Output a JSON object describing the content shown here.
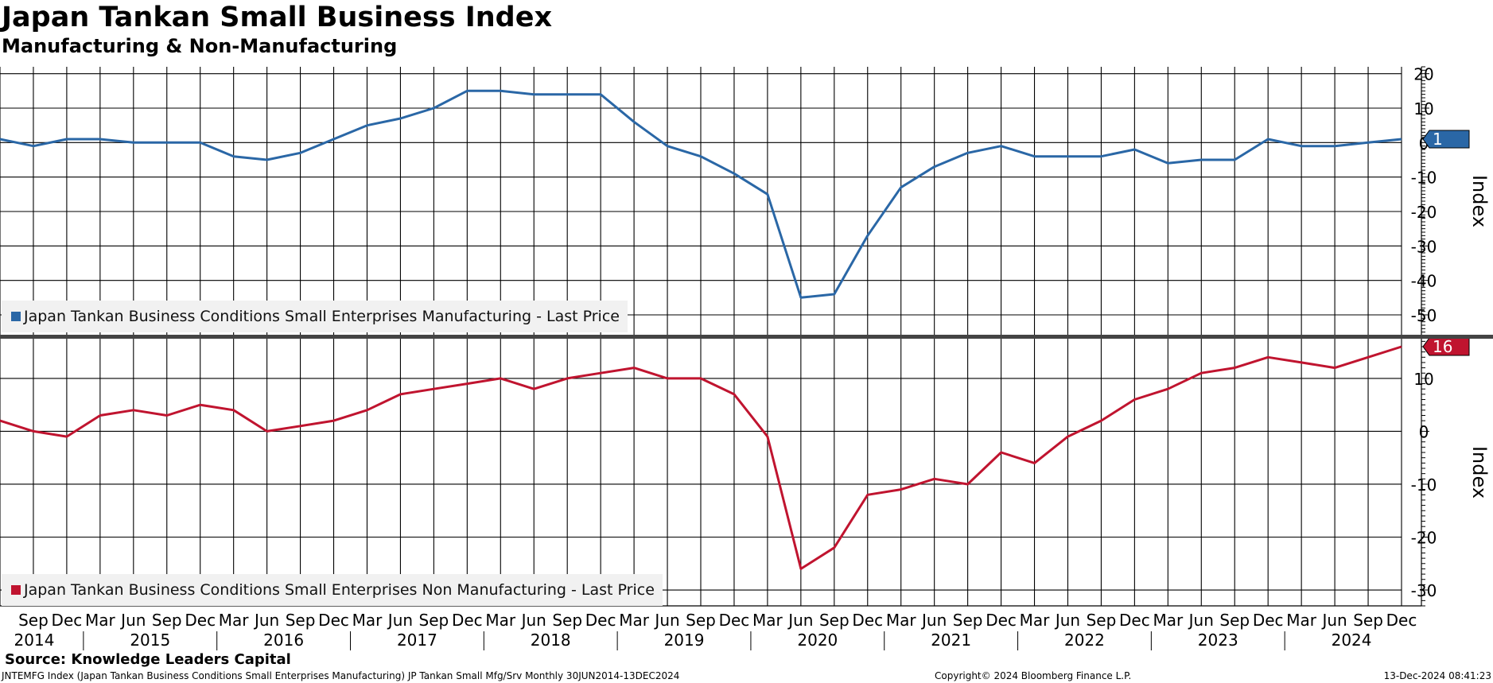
{
  "header": {
    "title": "Japan Tankan Small Business Index",
    "subtitle": "Manufacturing & Non-Manufacturing"
  },
  "footer": {
    "source": "Source: Knowledge Leaders Capital",
    "left": "JNTEMFG Index (Japan Tankan Business Conditions Small Enterprises Manufacturing) JP Tankan Small Mfg/Srv  Monthly 30JUN2014-13DEC2024",
    "middle": "Copyright© 2024 Bloomberg Finance L.P.",
    "right": "13-Dec-2024 08:41:23"
  },
  "chart_data": [
    {
      "type": "line",
      "ylabel": "Index",
      "ylim": [
        -56,
        22
      ],
      "yticks": [
        20,
        10,
        0,
        -10,
        -20,
        -30,
        -40,
        -50
      ],
      "grid": true,
      "legend_position": "bottom-left",
      "last_value_label": "1",
      "x": [
        "Jun 2014",
        "Sep 2014",
        "Dec 2014",
        "Mar 2015",
        "Jun 2015",
        "Sep 2015",
        "Dec 2015",
        "Mar 2016",
        "Jun 2016",
        "Sep 2016",
        "Dec 2016",
        "Mar 2017",
        "Jun 2017",
        "Sep 2017",
        "Dec 2017",
        "Mar 2018",
        "Jun 2018",
        "Sep 2018",
        "Dec 2018",
        "Mar 2019",
        "Jun 2019",
        "Sep 2019",
        "Dec 2019",
        "Mar 2020",
        "Jun 2020",
        "Sep 2020",
        "Dec 2020",
        "Mar 2021",
        "Jun 2021",
        "Sep 2021",
        "Dec 2021",
        "Mar 2022",
        "Jun 2022",
        "Sep 2022",
        "Dec 2022",
        "Mar 2023",
        "Jun 2023",
        "Sep 2023",
        "Dec 2023",
        "Mar 2024",
        "Jun 2024",
        "Sep 2024",
        "Dec 2024"
      ],
      "series": [
        {
          "name": "Japan Tankan Business Conditions Small Enterprises Manufacturing - Last Price",
          "color": "#2a67a6",
          "values": [
            1,
            -1,
            1,
            1,
            0,
            0,
            0,
            -4,
            -5,
            -3,
            1,
            5,
            7,
            10,
            15,
            15,
            14,
            14,
            14,
            6,
            -1,
            -4,
            -9,
            -15,
            -45,
            -44,
            -27,
            -13,
            -7,
            -3,
            -1,
            -4,
            -4,
            -4,
            -2,
            -6,
            -5,
            -5,
            1,
            -1,
            -1,
            0,
            1
          ]
        }
      ]
    },
    {
      "type": "line",
      "ylabel": "Index",
      "ylim": [
        -33,
        17.5
      ],
      "yticks": [
        10,
        0,
        -10,
        -20,
        -30
      ],
      "grid": true,
      "legend_position": "bottom-left",
      "last_value_label": "16",
      "x": [
        "Jun 2014",
        "Sep 2014",
        "Dec 2014",
        "Mar 2015",
        "Jun 2015",
        "Sep 2015",
        "Dec 2015",
        "Mar 2016",
        "Jun 2016",
        "Sep 2016",
        "Dec 2016",
        "Mar 2017",
        "Jun 2017",
        "Sep 2017",
        "Dec 2017",
        "Mar 2018",
        "Jun 2018",
        "Sep 2018",
        "Dec 2018",
        "Mar 2019",
        "Jun 2019",
        "Sep 2019",
        "Dec 2019",
        "Mar 2020",
        "Jun 2020",
        "Sep 2020",
        "Dec 2020",
        "Mar 2021",
        "Jun 2021",
        "Sep 2021",
        "Dec 2021",
        "Mar 2022",
        "Jun 2022",
        "Sep 2022",
        "Dec 2022",
        "Mar 2023",
        "Jun 2023",
        "Sep 2023",
        "Dec 2023",
        "Mar 2024",
        "Jun 2024",
        "Sep 2024",
        "Dec 2024"
      ],
      "series": [
        {
          "name": "Japan Tankan Business Conditions Small Enterprises Non Manufacturing - Last Price",
          "color": "#c0142f",
          "values": [
            2,
            0,
            -1,
            3,
            4,
            3,
            5,
            4,
            0,
            1,
            2,
            4,
            7,
            8,
            9,
            10,
            8,
            10,
            11,
            12,
            10,
            10,
            7,
            -1,
            -26,
            -22,
            -12,
            -11,
            -9,
            -10,
            -4,
            -6,
            -1,
            2,
            6,
            8,
            11,
            12,
            14,
            13,
            12,
            14,
            16
          ]
        }
      ]
    }
  ],
  "x_axis": {
    "month_labels": [
      "Sep",
      "Dec",
      "Mar",
      "Jun",
      "Sep",
      "Dec",
      "Mar",
      "Jun",
      "Sep",
      "Dec",
      "Mar",
      "Jun",
      "Sep",
      "Dec",
      "Mar",
      "Jun",
      "Sep",
      "Dec",
      "Mar",
      "Jun",
      "Sep",
      "Dec",
      "Mar",
      "Jun",
      "Sep",
      "Dec",
      "Mar",
      "Jun",
      "Sep",
      "Dec",
      "Mar",
      "Jun",
      "Sep",
      "Dec",
      "Mar",
      "Jun",
      "Sep",
      "Dec",
      "Mar",
      "Jun",
      "Sep",
      "Dec"
    ],
    "years": [
      "2014",
      "2015",
      "2016",
      "2017",
      "2018",
      "2019",
      "2020",
      "2021",
      "2022",
      "2023",
      "2024"
    ]
  }
}
